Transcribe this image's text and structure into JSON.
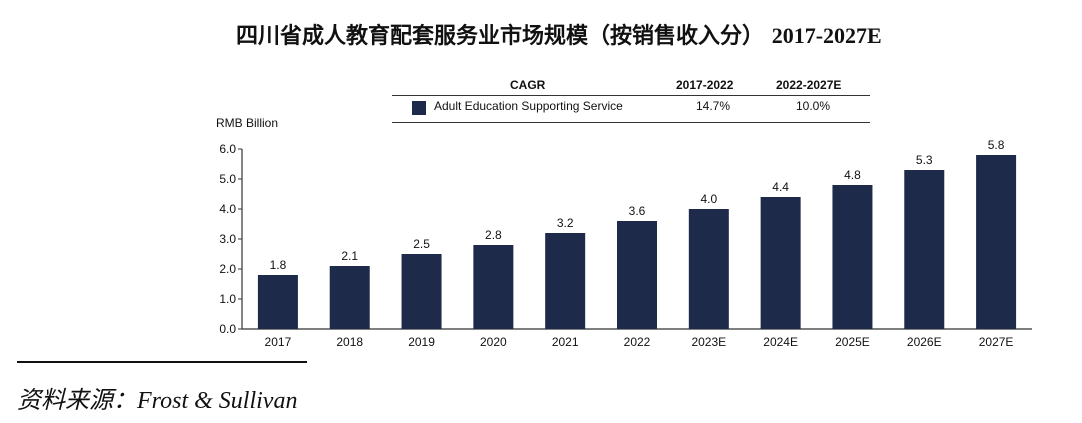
{
  "title": {
    "main": "四川省成人教育配套服务业市场规模（按销售收入分）",
    "years": "2017-2027E"
  },
  "cagr_table": {
    "header": "CAGR",
    "period1": "2017-2022",
    "period2": "2022-2027E",
    "series_name": "Adult Education Supporting Service",
    "value1": "14.7%",
    "value2": "10.0%"
  },
  "source": "资料来源：Frost & Sullivan",
  "colors": {
    "bar": "#1e2a4a",
    "axis": "#333333"
  },
  "chart_data": {
    "type": "bar",
    "title": "四川省成人教育配套服务业市场规模（按销售收入分） 2017-2027E",
    "ylabel": "RMB Billion",
    "xlabel": "",
    "ylim": [
      0,
      6
    ],
    "yticks": [
      "0.0",
      "1.0",
      "2.0",
      "3.0",
      "4.0",
      "5.0",
      "6.0"
    ],
    "grid": false,
    "categories": [
      "2017",
      "2018",
      "2019",
      "2020",
      "2021",
      "2022",
      "2023E",
      "2024E",
      "2025E",
      "2026E",
      "2027E"
    ],
    "series": [
      {
        "name": "Adult Education Supporting Service",
        "values": [
          1.8,
          2.1,
          2.5,
          2.8,
          3.2,
          3.6,
          4.0,
          4.4,
          4.8,
          5.3,
          5.8
        ]
      }
    ]
  }
}
